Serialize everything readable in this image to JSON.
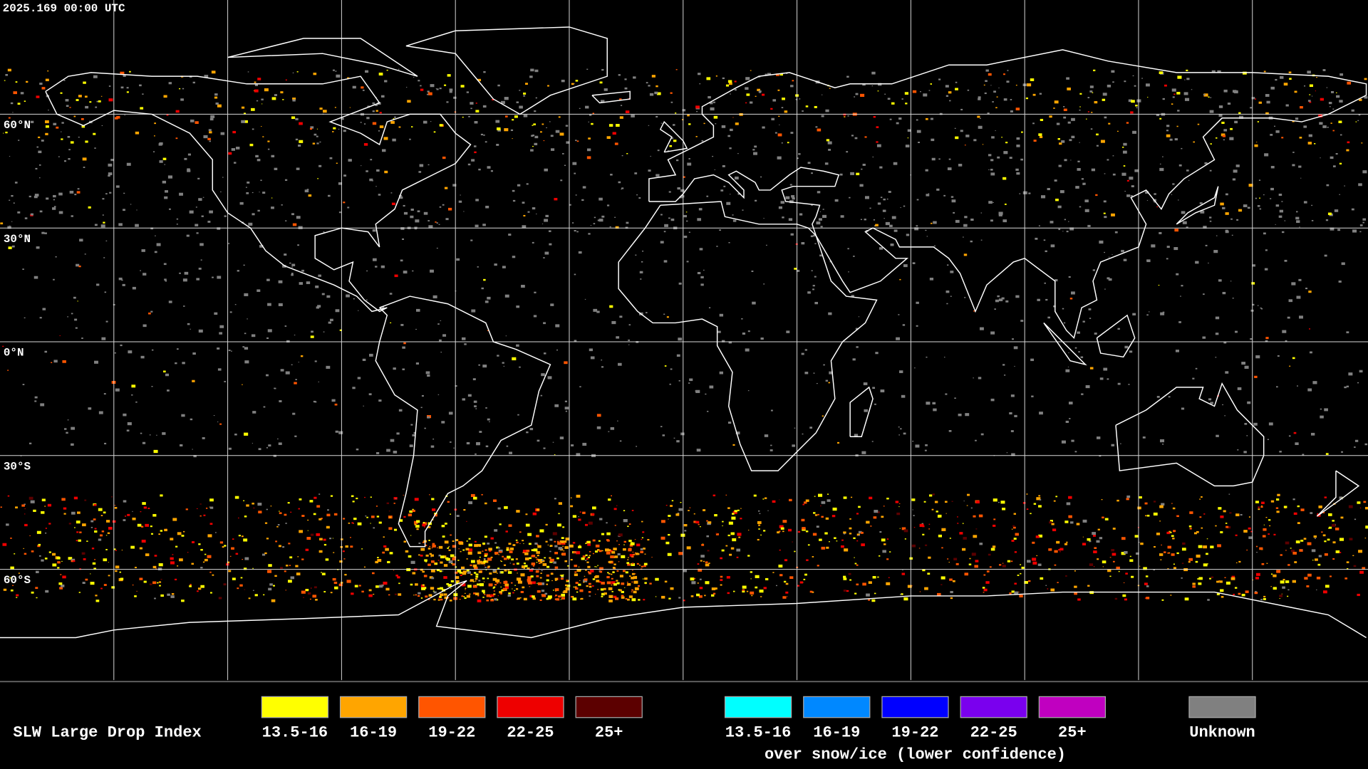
{
  "header": {
    "timestamp": "2025.169 00:00 UTC"
  },
  "map": {
    "lat_labels": [
      "60°N",
      "30°N",
      "0°N",
      "30°S",
      "60°S"
    ]
  },
  "legend": {
    "title": "SLW Large Drop Index",
    "items": [
      {
        "label": "13.5-16",
        "color": "#ffff00"
      },
      {
        "label": "16-19",
        "color": "#ffa500"
      },
      {
        "label": "19-22",
        "color": "#ff5500"
      },
      {
        "label": "22-25",
        "color": "#ee0000"
      },
      {
        "label": "25+",
        "color": "#5c0000"
      }
    ],
    "snow_items": [
      {
        "label": "13.5-16",
        "color": "#00ffff"
      },
      {
        "label": "16-19",
        "color": "#0088ff"
      },
      {
        "label": "19-22",
        "color": "#0000ff"
      },
      {
        "label": "22-25",
        "color": "#7a00ee"
      },
      {
        "label": "25+",
        "color": "#c000c0"
      }
    ],
    "snow_caption": "over snow/ice (lower confidence)",
    "unknown": {
      "label": "Unknown",
      "color": "#808080"
    }
  }
}
